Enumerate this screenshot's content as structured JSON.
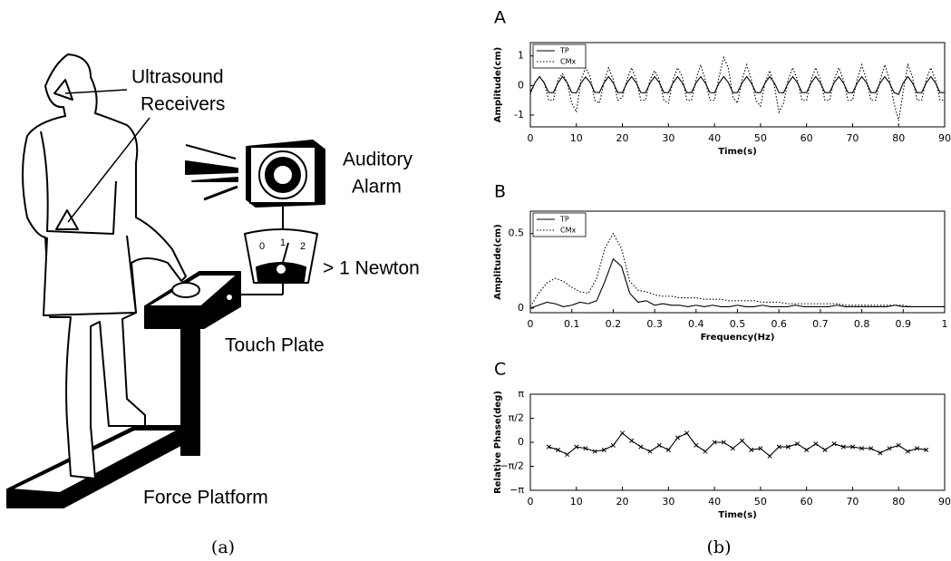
{
  "illustration": {
    "labels": {
      "ultrasound": [
        "Ultrasound",
        "Receivers"
      ],
      "alarm": [
        "Auditory",
        "Alarm"
      ],
      "threshold": "> 1 Newton",
      "touch_plate": "Touch Plate",
      "force_platform": "Force Platform"
    },
    "meter_ticks": [
      "0",
      "1",
      "2"
    ]
  },
  "captions": [
    "(a)",
    "(b)"
  ],
  "chart_data": [
    {
      "type": "line",
      "panel": "A",
      "xlabel": "Time(s)",
      "ylabel": "Amplitude(cm)",
      "x": [
        0,
        1,
        2,
        3,
        4,
        5,
        6,
        7,
        8,
        9,
        10,
        11,
        12,
        13,
        14,
        15,
        16,
        17,
        18,
        19,
        20,
        21,
        22,
        23,
        24,
        25,
        26,
        27,
        28,
        29,
        30,
        31,
        32,
        33,
        34,
        35,
        36,
        37,
        38,
        39,
        40,
        41,
        42,
        43,
        44,
        45,
        46,
        47,
        48,
        49,
        50,
        51,
        52,
        53,
        54,
        55,
        56,
        57,
        58,
        59,
        60,
        61,
        62,
        63,
        64,
        65,
        66,
        67,
        68,
        69,
        70,
        71,
        72,
        73,
        74,
        75,
        76,
        77,
        78,
        79,
        80,
        81,
        82,
        83,
        84,
        85,
        86,
        87,
        88,
        89,
        90
      ],
      "series": [
        {
          "name": "TP",
          "color": "#000000",
          "linestyle": "solid",
          "values": [
            -0.24,
            0.09,
            0.3,
            0.09,
            -0.24,
            -0.24,
            0.09,
            0.3,
            0.09,
            -0.24,
            -0.25,
            0.08,
            0.29,
            0.1,
            -0.23,
            -0.24,
            0.09,
            0.3,
            0.09,
            -0.24,
            -0.24,
            0.09,
            0.3,
            0.09,
            -0.24,
            -0.25,
            0.08,
            0.3,
            0.1,
            -0.24,
            -0.24,
            0.09,
            0.3,
            0.09,
            -0.24,
            -0.24,
            0.09,
            0.3,
            0.09,
            -0.24,
            -0.25,
            0.08,
            0.3,
            0.1,
            -0.24,
            -0.24,
            0.09,
            0.3,
            0.09,
            -0.24,
            -0.24,
            0.09,
            0.3,
            0.09,
            -0.24,
            -0.25,
            0.08,
            0.3,
            0.1,
            -0.24,
            -0.24,
            0.09,
            0.3,
            0.09,
            -0.24,
            -0.24,
            0.09,
            0.3,
            0.09,
            -0.24,
            -0.25,
            0.08,
            0.3,
            0.1,
            -0.24,
            -0.24,
            0.09,
            0.3,
            0.09,
            -0.24,
            -0.3,
            0.09,
            0.3,
            0.09,
            -0.24,
            -0.24,
            0.09,
            0.3,
            0.09,
            -0.24,
            -0.24
          ]
        },
        {
          "name": "CMx",
          "color": "#000000",
          "linestyle": "dotted",
          "values": [
            -0.3,
            0.1,
            0.3,
            0.1,
            -0.5,
            -0.5,
            0.2,
            0.4,
            0.1,
            -0.6,
            -0.9,
            0.2,
            0.6,
            0.3,
            -0.5,
            -0.6,
            0.1,
            0.6,
            0.2,
            -0.5,
            -0.4,
            0.2,
            0.6,
            0.2,
            -0.5,
            -0.5,
            0.2,
            0.5,
            0.2,
            -0.5,
            -0.6,
            0.2,
            0.6,
            0.3,
            -0.5,
            -0.5,
            0.2,
            0.7,
            0.2,
            -0.5,
            -0.5,
            0.3,
            0.95,
            0.6,
            -0.4,
            -0.6,
            0.2,
            0.7,
            0.2,
            -0.5,
            -0.7,
            0.1,
            0.5,
            0.0,
            -0.9,
            -0.6,
            0.2,
            0.6,
            0.2,
            -0.5,
            -0.5,
            0.2,
            0.6,
            0.2,
            -0.5,
            -0.5,
            0.2,
            0.6,
            0.2,
            -0.5,
            -0.5,
            0.2,
            0.7,
            0.2,
            -0.5,
            -0.5,
            0.2,
            0.7,
            0.2,
            -0.6,
            -1.2,
            -0.2,
            0.7,
            0.3,
            -0.5,
            -0.5,
            0.2,
            0.6,
            0.2,
            -0.5,
            -0.5
          ]
        }
      ],
      "xlim": [
        0,
        90
      ],
      "xticks": [
        0,
        10,
        20,
        30,
        40,
        50,
        60,
        70,
        80,
        90
      ],
      "ylim": [
        -1.4,
        1.45
      ],
      "yticks": [
        -1,
        0,
        1
      ],
      "legend": "upper left"
    },
    {
      "type": "line",
      "panel": "B",
      "xlabel": "Frequency(Hz)",
      "ylabel": "Amplitude(cm)",
      "x": [
        0,
        0.02,
        0.04,
        0.06,
        0.08,
        0.1,
        0.12,
        0.14,
        0.16,
        0.18,
        0.2,
        0.22,
        0.24,
        0.26,
        0.28,
        0.3,
        0.32,
        0.34,
        0.36,
        0.38,
        0.4,
        0.42,
        0.44,
        0.46,
        0.48,
        0.5,
        0.52,
        0.54,
        0.56,
        0.58,
        0.6,
        0.62,
        0.64,
        0.66,
        0.68,
        0.7,
        0.72,
        0.74,
        0.76,
        0.78,
        0.8,
        0.82,
        0.84,
        0.86,
        0.88,
        0.9,
        0.92,
        0.94,
        0.96,
        0.98,
        1
      ],
      "series": [
        {
          "name": "TP",
          "color": "#000000",
          "linestyle": "solid",
          "values": [
            0,
            0.02,
            0.04,
            0.03,
            0.01,
            0.02,
            0.04,
            0.03,
            0.05,
            0.18,
            0.33,
            0.28,
            0.1,
            0.04,
            0.05,
            0.02,
            0.03,
            0.02,
            0.02,
            0.01,
            0.02,
            0.01,
            0.02,
            0.01,
            0.01,
            0.02,
            0.01,
            0.01,
            0.02,
            0.01,
            0.01,
            0.01,
            0.02,
            0.01,
            0.01,
            0.01,
            0.01,
            0.02,
            0.01,
            0.01,
            0.01,
            0.01,
            0.01,
            0.01,
            0.02,
            0.01,
            0.01,
            0.01,
            0.01,
            0.01,
            0.01
          ]
        },
        {
          "name": "CMx",
          "color": "#000000",
          "linestyle": "dotted",
          "values": [
            0.01,
            0.1,
            0.17,
            0.2,
            0.18,
            0.14,
            0.11,
            0.1,
            0.2,
            0.4,
            0.5,
            0.4,
            0.18,
            0.12,
            0.11,
            0.09,
            0.08,
            0.08,
            0.07,
            0.07,
            0.07,
            0.06,
            0.06,
            0.06,
            0.05,
            0.05,
            0.05,
            0.05,
            0.04,
            0.04,
            0.04,
            0.03,
            0.03,
            0.03,
            0.03,
            0.03,
            0.03,
            0.03,
            0.02,
            0.02,
            0.02,
            0.02,
            0.02,
            0.02,
            0.02,
            0.02,
            0.01,
            0.01,
            0.01,
            0.01,
            0.01
          ]
        }
      ],
      "xlim": [
        0,
        1
      ],
      "xticks": [
        0,
        0.1,
        0.2,
        0.3,
        0.4,
        0.5,
        0.6,
        0.7,
        0.8,
        0.9,
        1
      ],
      "ylim": [
        -0.03,
        0.65
      ],
      "yticks": [
        0,
        0.5
      ],
      "legend": "upper left"
    },
    {
      "type": "line",
      "panel": "C",
      "xlabel": "Time(s)",
      "ylabel": "Relative Phase(deg)",
      "marker": "x",
      "x": [
        4,
        6,
        8,
        10,
        12,
        14,
        16,
        18,
        20,
        22,
        24,
        26,
        28,
        30,
        32,
        34,
        36,
        38,
        40,
        42,
        44,
        46,
        48,
        50,
        52,
        54,
        56,
        58,
        60,
        62,
        64,
        66,
        68,
        70,
        72,
        74,
        76,
        78,
        80,
        82,
        84,
        86
      ],
      "series": [
        {
          "color": "#000000",
          "linestyle": "solid",
          "values": [
            -0.3,
            -0.5,
            -0.8,
            -0.3,
            -0.4,
            -0.6,
            -0.5,
            -0.2,
            0.6,
            0.1,
            -0.3,
            -0.6,
            -0.2,
            -0.5,
            0.3,
            0.6,
            -0.2,
            -0.6,
            0.0,
            0.0,
            -0.4,
            0.1,
            -0.5,
            -0.4,
            -0.9,
            -0.3,
            -0.3,
            -0.1,
            -0.5,
            -0.1,
            -0.5,
            -0.1,
            -0.3,
            -0.3,
            -0.4,
            -0.4,
            -0.7,
            -0.4,
            -0.2,
            -0.6,
            -0.4,
            -0.5
          ]
        }
      ],
      "xlim": [
        0,
        90
      ],
      "xticks": [
        0,
        10,
        20,
        30,
        40,
        50,
        60,
        70,
        80,
        90
      ],
      "ylim": [
        -3.1416,
        3.1416
      ],
      "yticks": [
        {
          "value": -3.1416,
          "label": "−π"
        },
        {
          "value": -1.5708,
          "label": "−π/2"
        },
        0,
        {
          "value": 1.5708,
          "label": "π/2"
        },
        {
          "value": 3.1416,
          "label": "π"
        }
      ]
    }
  ]
}
